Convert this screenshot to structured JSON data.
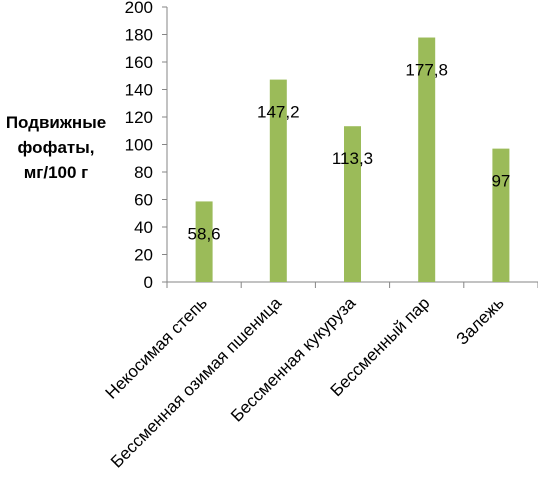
{
  "chart_data": {
    "type": "bar",
    "title": "",
    "xlabel": "",
    "ylabel_lines": [
      "Подвижные",
      "фофаты,",
      "мг/100 г"
    ],
    "categories": [
      "Некосимая степь",
      "Бессменная озимая пшеница",
      "Бессменная кукуруза",
      "Бессменный пар",
      "Залежь"
    ],
    "values": [
      58.6,
      147.2,
      113.3,
      177.8,
      97
    ],
    "data_labels": [
      "58,6",
      "147,2",
      "113,3",
      "177,8",
      "97"
    ],
    "ylim": [
      0,
      200
    ],
    "yticks": [
      0,
      20,
      40,
      60,
      80,
      100,
      120,
      140,
      160,
      180,
      200
    ],
    "grid": false,
    "legend": "none",
    "bar_color": "#9bbb59"
  }
}
